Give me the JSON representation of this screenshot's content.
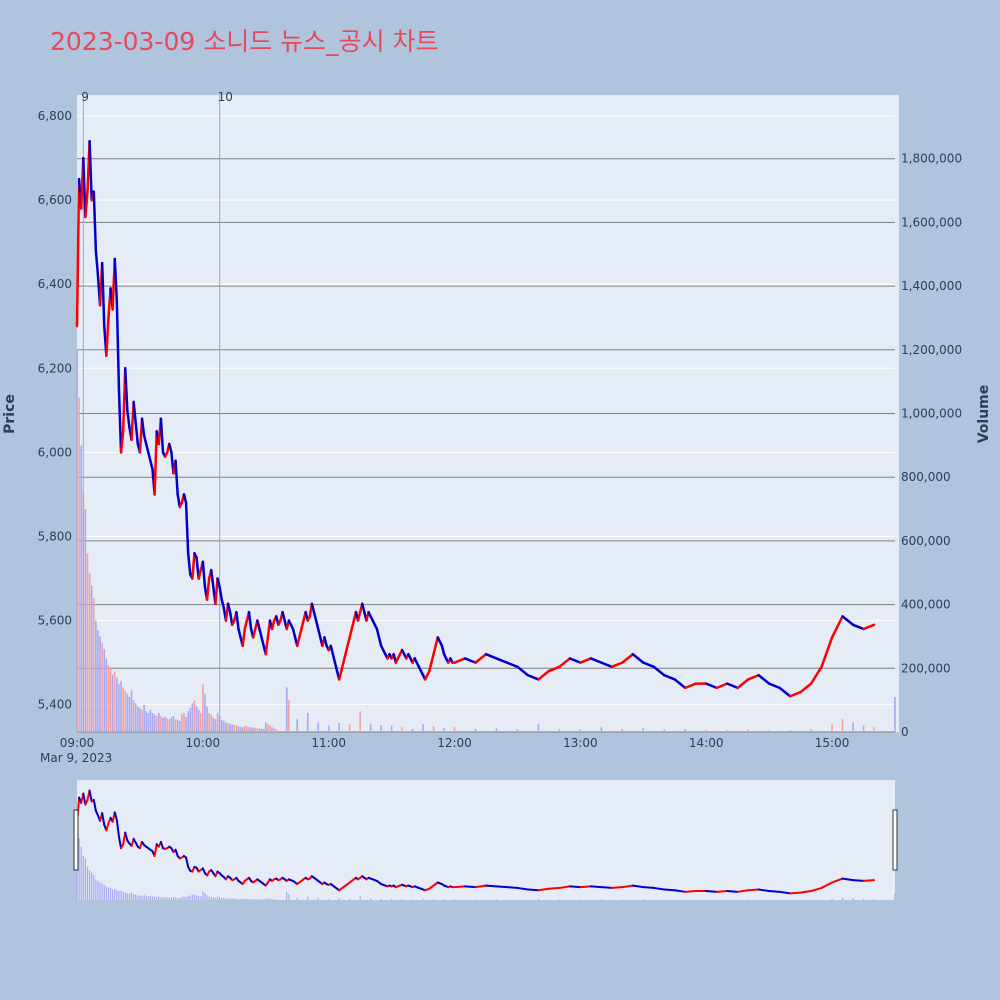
{
  "chart_data": {
    "type": "candlestick",
    "title": "2023-03-09 소니드 뉴스_공시 차트",
    "date_label": "Mar 9, 2023",
    "y_axis": {
      "label": "Price",
      "range": [
        5335,
        6850
      ],
      "ticks": [
        "5,400",
        "5,600",
        "5,800",
        "6,000",
        "6,200",
        "6,400",
        "6,600",
        "6,800"
      ],
      "tick_values": [
        5400,
        5600,
        5800,
        6000,
        6200,
        6400,
        6600,
        6800
      ]
    },
    "y2_axis": {
      "label": "Volume",
      "range": [
        0,
        2000000
      ],
      "ticks": [
        "0",
        "200,000",
        "400,000",
        "600,000",
        "800,000",
        "1,000,000",
        "1,200,000",
        "1,400,000",
        "1,600,000",
        "1,800,000"
      ],
      "tick_values": [
        0,
        200000,
        400000,
        600000,
        800000,
        1000000,
        1200000,
        1400000,
        1600000,
        1800000
      ]
    },
    "x_axis": {
      "ticks": [
        "09:00",
        "10:00",
        "11:00",
        "12:00",
        "13:00",
        "14:00",
        "15:00"
      ],
      "tick_values": [
        "09:00",
        "10:00",
        "11:00",
        "12:00",
        "13:00",
        "14:00",
        "15:00"
      ],
      "range": [
        "09:00",
        "15:30"
      ]
    },
    "event_markers": [
      {
        "time": "09:03",
        "label": "9"
      },
      {
        "time": "10:08",
        "label": "10"
      }
    ],
    "price_series": [
      [
        "09:00",
        6300
      ],
      [
        "09:01",
        6650
      ],
      [
        "09:02",
        6580
      ],
      [
        "09:03",
        6700
      ],
      [
        "09:04",
        6560
      ],
      [
        "09:05",
        6620
      ],
      [
        "09:06",
        6740
      ],
      [
        "09:07",
        6600
      ],
      [
        "09:08",
        6620
      ],
      [
        "09:09",
        6480
      ],
      [
        "09:10",
        6420
      ],
      [
        "09:11",
        6350
      ],
      [
        "09:12",
        6450
      ],
      [
        "09:13",
        6300
      ],
      [
        "09:14",
        6230
      ],
      [
        "09:15",
        6320
      ],
      [
        "09:16",
        6390
      ],
      [
        "09:17",
        6340
      ],
      [
        "09:18",
        6460
      ],
      [
        "09:19",
        6360
      ],
      [
        "09:20",
        6150
      ],
      [
        "09:21",
        6000
      ],
      [
        "09:22",
        6050
      ],
      [
        "09:23",
        6200
      ],
      [
        "09:24",
        6100
      ],
      [
        "09:25",
        6060
      ],
      [
        "09:26",
        6030
      ],
      [
        "09:27",
        6120
      ],
      [
        "09:28",
        6070
      ],
      [
        "09:29",
        6020
      ],
      [
        "09:30",
        6000
      ],
      [
        "09:31",
        6080
      ],
      [
        "09:32",
        6040
      ],
      [
        "09:33",
        6020
      ],
      [
        "09:34",
        6000
      ],
      [
        "09:35",
        5980
      ],
      [
        "09:36",
        5960
      ],
      [
        "09:37",
        5900
      ],
      [
        "09:38",
        6050
      ],
      [
        "09:39",
        6020
      ],
      [
        "09:40",
        6080
      ],
      [
        "09:41",
        6000
      ],
      [
        "09:42",
        5990
      ],
      [
        "09:43",
        6000
      ],
      [
        "09:44",
        6020
      ],
      [
        "09:45",
        6000
      ],
      [
        "09:46",
        5950
      ],
      [
        "09:47",
        5980
      ],
      [
        "09:48",
        5900
      ],
      [
        "09:49",
        5870
      ],
      [
        "09:50",
        5880
      ],
      [
        "09:51",
        5900
      ],
      [
        "09:52",
        5880
      ],
      [
        "09:53",
        5760
      ],
      [
        "09:54",
        5710
      ],
      [
        "09:55",
        5700
      ],
      [
        "09:56",
        5760
      ],
      [
        "09:57",
        5750
      ],
      [
        "09:58",
        5700
      ],
      [
        "09:59",
        5720
      ],
      [
        "10:00",
        5740
      ],
      [
        "10:01",
        5680
      ],
      [
        "10:02",
        5650
      ],
      [
        "10:03",
        5700
      ],
      [
        "10:04",
        5720
      ],
      [
        "10:05",
        5680
      ],
      [
        "10:06",
        5640
      ],
      [
        "10:07",
        5700
      ],
      [
        "10:08",
        5680
      ],
      [
        "10:09",
        5650
      ],
      [
        "10:10",
        5630
      ],
      [
        "10:11",
        5600
      ],
      [
        "10:12",
        5640
      ],
      [
        "10:13",
        5620
      ],
      [
        "10:14",
        5590
      ],
      [
        "10:15",
        5600
      ],
      [
        "10:16",
        5620
      ],
      [
        "10:17",
        5580
      ],
      [
        "10:18",
        5560
      ],
      [
        "10:19",
        5540
      ],
      [
        "10:20",
        5580
      ],
      [
        "10:21",
        5600
      ],
      [
        "10:22",
        5620
      ],
      [
        "10:23",
        5580
      ],
      [
        "10:24",
        5560
      ],
      [
        "10:25",
        5580
      ],
      [
        "10:26",
        5600
      ],
      [
        "10:27",
        5580
      ],
      [
        "10:28",
        5560
      ],
      [
        "10:29",
        5540
      ],
      [
        "10:30",
        5520
      ],
      [
        "10:31",
        5560
      ],
      [
        "10:32",
        5600
      ],
      [
        "10:33",
        5580
      ],
      [
        "10:34",
        5600
      ],
      [
        "10:35",
        5610
      ],
      [
        "10:36",
        5590
      ],
      [
        "10:37",
        5600
      ],
      [
        "10:38",
        5620
      ],
      [
        "10:39",
        5600
      ],
      [
        "10:40",
        5580
      ],
      [
        "10:41",
        5600
      ],
      [
        "10:42",
        5590
      ],
      [
        "10:43",
        5580
      ],
      [
        "10:44",
        5560
      ],
      [
        "10:45",
        5540
      ],
      [
        "10:46",
        5560
      ],
      [
        "10:47",
        5580
      ],
      [
        "10:48",
        5600
      ],
      [
        "10:49",
        5620
      ],
      [
        "10:50",
        5600
      ],
      [
        "10:51",
        5610
      ],
      [
        "10:52",
        5640
      ],
      [
        "10:53",
        5620
      ],
      [
        "10:54",
        5600
      ],
      [
        "10:55",
        5580
      ],
      [
        "10:56",
        5560
      ],
      [
        "10:57",
        5540
      ],
      [
        "10:58",
        5560
      ],
      [
        "10:59",
        5540
      ],
      [
        "11:00",
        5530
      ],
      [
        "11:01",
        5540
      ],
      [
        "11:02",
        5520
      ],
      [
        "11:03",
        5500
      ],
      [
        "11:04",
        5480
      ],
      [
        "11:05",
        5460
      ],
      [
        "11:06",
        5480
      ],
      [
        "11:07",
        5500
      ],
      [
        "11:08",
        5520
      ],
      [
        "11:09",
        5540
      ],
      [
        "11:10",
        5560
      ],
      [
        "11:11",
        5580
      ],
      [
        "11:12",
        5600
      ],
      [
        "11:13",
        5620
      ],
      [
        "11:14",
        5600
      ],
      [
        "11:15",
        5620
      ],
      [
        "11:16",
        5640
      ],
      [
        "11:17",
        5620
      ],
      [
        "11:18",
        5600
      ],
      [
        "11:19",
        5620
      ],
      [
        "11:20",
        5610
      ],
      [
        "11:21",
        5600
      ],
      [
        "11:22",
        5590
      ],
      [
        "11:23",
        5580
      ],
      [
        "11:24",
        5560
      ],
      [
        "11:25",
        5540
      ],
      [
        "11:26",
        5530
      ],
      [
        "11:27",
        5520
      ],
      [
        "11:28",
        5510
      ],
      [
        "11:29",
        5520
      ],
      [
        "11:30",
        5510
      ],
      [
        "11:31",
        5520
      ],
      [
        "11:32",
        5500
      ],
      [
        "11:33",
        5510
      ],
      [
        "11:34",
        5520
      ],
      [
        "11:35",
        5530
      ],
      [
        "11:36",
        5520
      ],
      [
        "11:37",
        5510
      ],
      [
        "11:38",
        5520
      ],
      [
        "11:39",
        5510
      ],
      [
        "11:40",
        5500
      ],
      [
        "11:41",
        5510
      ],
      [
        "11:42",
        5500
      ],
      [
        "11:43",
        5490
      ],
      [
        "11:44",
        5480
      ],
      [
        "11:45",
        5470
      ],
      [
        "11:46",
        5460
      ],
      [
        "11:47",
        5470
      ],
      [
        "11:48",
        5480
      ],
      [
        "11:49",
        5500
      ],
      [
        "11:50",
        5520
      ],
      [
        "11:51",
        5540
      ],
      [
        "11:52",
        5560
      ],
      [
        "11:53",
        5550
      ],
      [
        "11:54",
        5540
      ],
      [
        "11:55",
        5520
      ],
      [
        "11:56",
        5510
      ],
      [
        "11:57",
        5500
      ],
      [
        "11:58",
        5510
      ],
      [
        "11:59",
        5500
      ],
      [
        "12:00",
        5500
      ],
      [
        "12:05",
        5510
      ],
      [
        "12:10",
        5500
      ],
      [
        "12:15",
        5520
      ],
      [
        "12:20",
        5510
      ],
      [
        "12:25",
        5500
      ],
      [
        "12:30",
        5490
      ],
      [
        "12:35",
        5470
      ],
      [
        "12:40",
        5460
      ],
      [
        "12:45",
        5480
      ],
      [
        "12:50",
        5490
      ],
      [
        "12:55",
        5510
      ],
      [
        "13:00",
        5500
      ],
      [
        "13:05",
        5510
      ],
      [
        "13:10",
        5500
      ],
      [
        "13:15",
        5490
      ],
      [
        "13:20",
        5500
      ],
      [
        "13:25",
        5520
      ],
      [
        "13:30",
        5500
      ],
      [
        "13:35",
        5490
      ],
      [
        "13:40",
        5470
      ],
      [
        "13:45",
        5460
      ],
      [
        "13:50",
        5440
      ],
      [
        "13:55",
        5450
      ],
      [
        "14:00",
        5450
      ],
      [
        "14:05",
        5440
      ],
      [
        "14:10",
        5450
      ],
      [
        "14:15",
        5440
      ],
      [
        "14:20",
        5460
      ],
      [
        "14:25",
        5470
      ],
      [
        "14:30",
        5450
      ],
      [
        "14:35",
        5440
      ],
      [
        "14:40",
        5420
      ],
      [
        "14:45",
        5430
      ],
      [
        "14:50",
        5450
      ],
      [
        "14:55",
        5490
      ],
      [
        "15:00",
        5560
      ],
      [
        "15:05",
        5610
      ],
      [
        "15:10",
        5590
      ],
      [
        "15:15",
        5580
      ],
      [
        "15:20",
        5590
      ]
    ],
    "volume_series": [
      [
        "09:00",
        1200000
      ],
      [
        "09:01",
        1050000
      ],
      [
        "09:02",
        900000
      ],
      [
        "09:03",
        750000
      ],
      [
        "09:04",
        700000
      ],
      [
        "09:05",
        560000
      ],
      [
        "09:06",
        500000
      ],
      [
        "09:07",
        460000
      ],
      [
        "09:08",
        420000
      ],
      [
        "09:09",
        350000
      ],
      [
        "09:10",
        320000
      ],
      [
        "09:11",
        300000
      ],
      [
        "09:12",
        280000
      ],
      [
        "09:13",
        260000
      ],
      [
        "09:14",
        230000
      ],
      [
        "09:15",
        210000
      ],
      [
        "09:16",
        200000
      ],
      [
        "09:17",
        180000
      ],
      [
        "09:18",
        190000
      ],
      [
        "09:19",
        170000
      ],
      [
        "09:20",
        150000
      ],
      [
        "09:21",
        160000
      ],
      [
        "09:22",
        140000
      ],
      [
        "09:23",
        130000
      ],
      [
        "09:24",
        120000
      ],
      [
        "09:25",
        110000
      ],
      [
        "09:26",
        130000
      ],
      [
        "09:27",
        100000
      ],
      [
        "09:28",
        90000
      ],
      [
        "09:29",
        80000
      ],
      [
        "09:30",
        75000
      ],
      [
        "09:31",
        70000
      ],
      [
        "09:32",
        85000
      ],
      [
        "09:33",
        65000
      ],
      [
        "09:34",
        60000
      ],
      [
        "09:35",
        70000
      ],
      [
        "09:36",
        60000
      ],
      [
        "09:37",
        55000
      ],
      [
        "09:38",
        50000
      ],
      [
        "09:39",
        60000
      ],
      [
        "09:40",
        50000
      ],
      [
        "09:41",
        45000
      ],
      [
        "09:42",
        48000
      ],
      [
        "09:43",
        42000
      ],
      [
        "09:44",
        40000
      ],
      [
        "09:45",
        45000
      ],
      [
        "09:46",
        50000
      ],
      [
        "09:47",
        40000
      ],
      [
        "09:48",
        38000
      ],
      [
        "09:49",
        35000
      ],
      [
        "09:50",
        55000
      ],
      [
        "09:51",
        60000
      ],
      [
        "09:52",
        48000
      ],
      [
        "09:53",
        65000
      ],
      [
        "09:54",
        75000
      ],
      [
        "09:55",
        90000
      ],
      [
        "09:56",
        100000
      ],
      [
        "09:57",
        80000
      ],
      [
        "09:58",
        70000
      ],
      [
        "09:59",
        60000
      ],
      [
        "10:00",
        150000
      ],
      [
        "10:01",
        120000
      ],
      [
        "10:02",
        80000
      ],
      [
        "10:03",
        60000
      ],
      [
        "10:04",
        55000
      ],
      [
        "10:05",
        45000
      ],
      [
        "10:06",
        40000
      ],
      [
        "10:07",
        60000
      ],
      [
        "10:08",
        50000
      ],
      [
        "10:09",
        38000
      ],
      [
        "10:10",
        35000
      ],
      [
        "10:11",
        30000
      ],
      [
        "10:12",
        28000
      ],
      [
        "10:13",
        26000
      ],
      [
        "10:14",
        24000
      ],
      [
        "10:15",
        22000
      ],
      [
        "10:16",
        20000
      ],
      [
        "10:17",
        18000
      ],
      [
        "10:18",
        16000
      ],
      [
        "10:19",
        15000
      ],
      [
        "10:20",
        20000
      ],
      [
        "10:21",
        18000
      ],
      [
        "10:22",
        16000
      ],
      [
        "10:23",
        15000
      ],
      [
        "10:24",
        14000
      ],
      [
        "10:25",
        13000
      ],
      [
        "10:26",
        12000
      ],
      [
        "10:27",
        11000
      ],
      [
        "10:28",
        10000
      ],
      [
        "10:29",
        9000
      ],
      [
        "10:30",
        30000
      ],
      [
        "10:31",
        25000
      ],
      [
        "10:32",
        20000
      ],
      [
        "10:33",
        15000
      ],
      [
        "10:34",
        12000
      ],
      [
        "10:35",
        10000
      ],
      [
        "10:40",
        140000
      ],
      [
        "10:41",
        100000
      ],
      [
        "10:45",
        40000
      ],
      [
        "10:50",
        60000
      ],
      [
        "10:55",
        30000
      ],
      [
        "11:00",
        20000
      ],
      [
        "11:05",
        28000
      ],
      [
        "11:10",
        24000
      ],
      [
        "11:15",
        65000
      ],
      [
        "11:20",
        26000
      ],
      [
        "11:25",
        22000
      ],
      [
        "11:30",
        20000
      ],
      [
        "11:35",
        15000
      ],
      [
        "11:40",
        10000
      ],
      [
        "11:45",
        25000
      ],
      [
        "11:50",
        18000
      ],
      [
        "11:55",
        12000
      ],
      [
        "12:00",
        15000
      ],
      [
        "12:10",
        10000
      ],
      [
        "12:20",
        12000
      ],
      [
        "12:30",
        8000
      ],
      [
        "12:40",
        25000
      ],
      [
        "12:50",
        10000
      ],
      [
        "13:00",
        8000
      ],
      [
        "13:10",
        15000
      ],
      [
        "13:20",
        10000
      ],
      [
        "13:30",
        12000
      ],
      [
        "13:40",
        8000
      ],
      [
        "13:50",
        10000
      ],
      [
        "14:00",
        7000
      ],
      [
        "14:10",
        6000
      ],
      [
        "14:20",
        8000
      ],
      [
        "14:30",
        5000
      ],
      [
        "14:40",
        6000
      ],
      [
        "14:50",
        10000
      ],
      [
        "15:00",
        25000
      ],
      [
        "15:05",
        40000
      ],
      [
        "15:10",
        30000
      ],
      [
        "15:15",
        20000
      ],
      [
        "15:20",
        15000
      ],
      [
        "15:30",
        110000
      ]
    ],
    "colors": {
      "up": "#ff0000",
      "down": "#0000cc",
      "vol_up": "#f4a0a0",
      "vol_down": "#a8a8f0",
      "marker": "#8fa8d8"
    }
  }
}
